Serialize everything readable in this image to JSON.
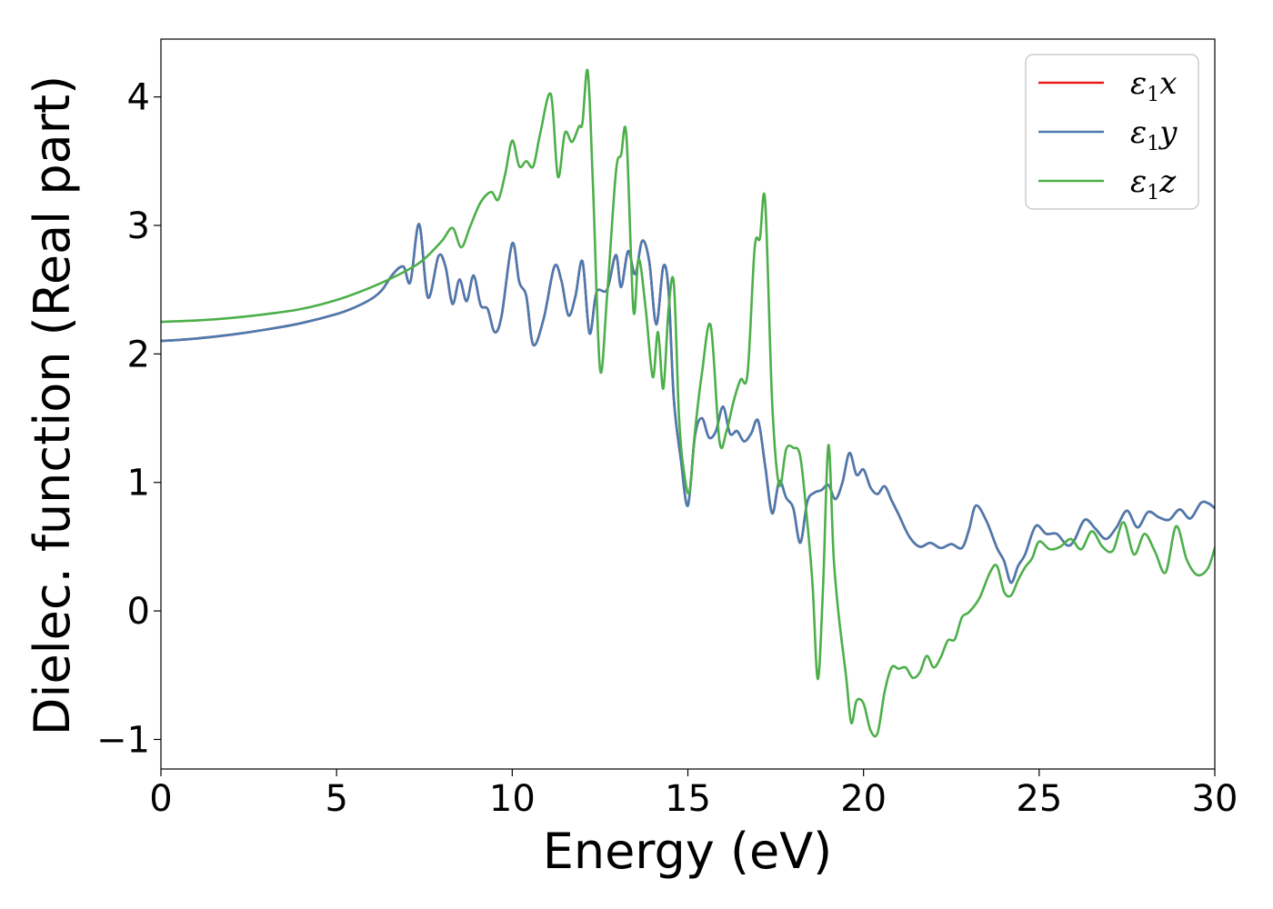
{
  "chart_data": {
    "type": "line",
    "xlabel": "Energy (eV)",
    "ylabel": "Dielec. function (Real part)",
    "xlim": [
      0,
      30
    ],
    "ylim": [
      -1.23,
      4.45
    ],
    "xticks": [
      0,
      5,
      10,
      15,
      20,
      25,
      30
    ],
    "xtick_labels": [
      "0",
      "5",
      "10",
      "15",
      "20",
      "25",
      "30"
    ],
    "yticks": [
      -1,
      0,
      1,
      2,
      3,
      4
    ],
    "ytick_labels": [
      "−1",
      "0",
      "1",
      "2",
      "3",
      "4"
    ],
    "grid": false,
    "legend_position": "top-right",
    "series": [
      {
        "name": "ε1x",
        "legend_symbol": "ε",
        "legend_sub": "1",
        "legend_var": "x",
        "color": "#e41a1c",
        "x": [
          0,
          1,
          2,
          3,
          4,
          5,
          5.5,
          6,
          6.3,
          6.6,
          6.9,
          7.1,
          7.35,
          7.6,
          7.9,
          8.1,
          8.3,
          8.5,
          8.7,
          8.9,
          9.1,
          9.3,
          9.5,
          9.7,
          10.0,
          10.2,
          10.4,
          10.6,
          10.9,
          11.2,
          11.4,
          11.6,
          11.8,
          12.0,
          12.2,
          12.4,
          12.7,
          12.95,
          13.1,
          13.3,
          13.5,
          13.7,
          13.9,
          14.1,
          14.3,
          14.45,
          14.6,
          14.8,
          15.0,
          15.2,
          15.4,
          15.6,
          15.8,
          16.0,
          16.2,
          16.4,
          16.6,
          16.8,
          17.0,
          17.2,
          17.4,
          17.6,
          17.8,
          18.0,
          18.2,
          18.4,
          18.6,
          18.8,
          19.0,
          19.2,
          19.4,
          19.6,
          19.8,
          20.0,
          20.2,
          20.4,
          20.6,
          20.8,
          21.0,
          21.3,
          21.6,
          21.9,
          22.2,
          22.5,
          22.8,
          23.0,
          23.2,
          23.5,
          23.8,
          24.0,
          24.2,
          24.4,
          24.6,
          24.9,
          25.2,
          25.5,
          25.8,
          26.0,
          26.3,
          26.6,
          26.9,
          27.2,
          27.5,
          27.8,
          28.1,
          28.4,
          28.7,
          29.0,
          29.3,
          29.6,
          29.8,
          30.0
        ],
        "values": [
          2.1,
          2.12,
          2.15,
          2.19,
          2.24,
          2.31,
          2.36,
          2.43,
          2.5,
          2.62,
          2.68,
          2.56,
          3.01,
          2.44,
          2.76,
          2.68,
          2.39,
          2.58,
          2.41,
          2.61,
          2.38,
          2.35,
          2.17,
          2.3,
          2.86,
          2.56,
          2.45,
          2.07,
          2.28,
          2.68,
          2.57,
          2.3,
          2.45,
          2.72,
          2.16,
          2.48,
          2.5,
          2.77,
          2.52,
          2.8,
          2.62,
          2.88,
          2.72,
          2.23,
          2.68,
          2.49,
          1.65,
          1.18,
          0.82,
          1.36,
          1.5,
          1.35,
          1.4,
          1.59,
          1.38,
          1.4,
          1.32,
          1.38,
          1.48,
          1.13,
          0.76,
          1.01,
          0.88,
          0.8,
          0.53,
          0.85,
          0.92,
          0.94,
          0.98,
          0.87,
          1.0,
          1.23,
          1.06,
          1.1,
          0.96,
          0.91,
          0.97,
          0.86,
          0.75,
          0.58,
          0.5,
          0.53,
          0.49,
          0.52,
          0.49,
          0.63,
          0.82,
          0.7,
          0.49,
          0.39,
          0.22,
          0.35,
          0.44,
          0.66,
          0.6,
          0.6,
          0.51,
          0.55,
          0.71,
          0.64,
          0.56,
          0.65,
          0.78,
          0.65,
          0.77,
          0.73,
          0.71,
          0.79,
          0.72,
          0.84,
          0.84,
          0.8
        ]
      },
      {
        "name": "ε1y",
        "legend_symbol": "ε",
        "legend_sub": "1",
        "legend_var": "y",
        "color": "#4a7bb0",
        "x": [
          0,
          1,
          2,
          3,
          4,
          5,
          5.5,
          6,
          6.3,
          6.6,
          6.9,
          7.1,
          7.35,
          7.6,
          7.9,
          8.1,
          8.3,
          8.5,
          8.7,
          8.9,
          9.1,
          9.3,
          9.5,
          9.7,
          10.0,
          10.2,
          10.4,
          10.6,
          10.9,
          11.2,
          11.4,
          11.6,
          11.8,
          12.0,
          12.2,
          12.4,
          12.7,
          12.95,
          13.1,
          13.3,
          13.5,
          13.7,
          13.9,
          14.1,
          14.3,
          14.45,
          14.6,
          14.8,
          15.0,
          15.2,
          15.4,
          15.6,
          15.8,
          16.0,
          16.2,
          16.4,
          16.6,
          16.8,
          17.0,
          17.2,
          17.4,
          17.6,
          17.8,
          18.0,
          18.2,
          18.4,
          18.6,
          18.8,
          19.0,
          19.2,
          19.4,
          19.6,
          19.8,
          20.0,
          20.2,
          20.4,
          20.6,
          20.8,
          21.0,
          21.3,
          21.6,
          21.9,
          22.2,
          22.5,
          22.8,
          23.0,
          23.2,
          23.5,
          23.8,
          24.0,
          24.2,
          24.4,
          24.6,
          24.9,
          25.2,
          25.5,
          25.8,
          26.0,
          26.3,
          26.6,
          26.9,
          27.2,
          27.5,
          27.8,
          28.1,
          28.4,
          28.7,
          29.0,
          29.3,
          29.6,
          29.8,
          30.0
        ],
        "values": [
          2.1,
          2.12,
          2.15,
          2.19,
          2.24,
          2.31,
          2.36,
          2.43,
          2.5,
          2.62,
          2.68,
          2.56,
          3.01,
          2.44,
          2.76,
          2.68,
          2.39,
          2.58,
          2.41,
          2.61,
          2.38,
          2.35,
          2.17,
          2.3,
          2.86,
          2.56,
          2.45,
          2.07,
          2.28,
          2.68,
          2.57,
          2.3,
          2.45,
          2.72,
          2.16,
          2.48,
          2.5,
          2.77,
          2.52,
          2.8,
          2.62,
          2.88,
          2.72,
          2.23,
          2.68,
          2.49,
          1.65,
          1.18,
          0.82,
          1.36,
          1.5,
          1.35,
          1.4,
          1.59,
          1.38,
          1.4,
          1.32,
          1.38,
          1.48,
          1.13,
          0.76,
          1.01,
          0.88,
          0.8,
          0.53,
          0.85,
          0.92,
          0.94,
          0.98,
          0.87,
          1.0,
          1.23,
          1.06,
          1.1,
          0.96,
          0.91,
          0.97,
          0.86,
          0.75,
          0.58,
          0.5,
          0.53,
          0.49,
          0.52,
          0.49,
          0.63,
          0.82,
          0.7,
          0.49,
          0.39,
          0.22,
          0.35,
          0.44,
          0.66,
          0.6,
          0.6,
          0.51,
          0.55,
          0.71,
          0.64,
          0.56,
          0.65,
          0.78,
          0.65,
          0.77,
          0.73,
          0.71,
          0.79,
          0.72,
          0.84,
          0.84,
          0.8
        ]
      },
      {
        "name": "ε1z",
        "legend_symbol": "ε",
        "legend_sub": "1",
        "legend_var": "z",
        "color": "#4daf4a",
        "x": [
          0,
          1,
          2,
          3,
          4,
          5,
          6,
          7,
          7.5,
          8.0,
          8.3,
          8.55,
          8.8,
          9.1,
          9.4,
          9.6,
          9.8,
          10.0,
          10.2,
          10.4,
          10.6,
          10.8,
          11.1,
          11.3,
          11.5,
          11.7,
          11.9,
          12.0,
          12.15,
          12.3,
          12.5,
          12.7,
          12.95,
          13.1,
          13.25,
          13.45,
          13.6,
          13.8,
          14.0,
          14.15,
          14.3,
          14.45,
          14.6,
          14.75,
          14.9,
          15.05,
          15.2,
          15.4,
          15.65,
          15.9,
          16.1,
          16.3,
          16.5,
          16.7,
          16.9,
          17.05,
          17.2,
          17.4,
          17.6,
          17.8,
          18.0,
          18.2,
          18.4,
          18.55,
          18.7,
          18.85,
          19.0,
          19.15,
          19.3,
          19.5,
          19.65,
          19.8,
          20.0,
          20.2,
          20.4,
          20.6,
          20.8,
          21.0,
          21.2,
          21.4,
          21.6,
          21.8,
          22.0,
          22.2,
          22.4,
          22.6,
          22.8,
          23.0,
          23.3,
          23.6,
          23.8,
          24.0,
          24.2,
          24.4,
          24.6,
          24.8,
          25.0,
          25.3,
          25.6,
          25.9,
          26.2,
          26.5,
          26.8,
          27.1,
          27.4,
          27.7,
          28.0,
          28.3,
          28.6,
          28.9,
          29.2,
          29.5,
          29.8,
          30.0
        ],
        "values": [
          2.25,
          2.26,
          2.28,
          2.31,
          2.35,
          2.42,
          2.52,
          2.65,
          2.74,
          2.88,
          2.98,
          2.83,
          2.99,
          3.18,
          3.26,
          3.2,
          3.4,
          3.66,
          3.46,
          3.5,
          3.46,
          3.72,
          4.02,
          3.38,
          3.72,
          3.65,
          3.77,
          3.8,
          4.2,
          3.3,
          1.88,
          2.45,
          3.41,
          3.55,
          3.7,
          2.34,
          2.74,
          2.35,
          1.82,
          2.17,
          1.73,
          2.35,
          2.55,
          1.5,
          1.06,
          0.93,
          1.39,
          1.85,
          2.22,
          1.32,
          1.4,
          1.63,
          1.8,
          1.85,
          2.82,
          2.9,
          3.19,
          1.62,
          0.98,
          1.26,
          1.27,
          1.2,
          0.69,
          0.2,
          -0.53,
          0.2,
          1.29,
          0.42,
          -0.05,
          -0.5,
          -0.87,
          -0.7,
          -0.72,
          -0.93,
          -0.95,
          -0.63,
          -0.44,
          -0.45,
          -0.44,
          -0.52,
          -0.48,
          -0.35,
          -0.44,
          -0.36,
          -0.23,
          -0.22,
          -0.05,
          -0.01,
          0.1,
          0.3,
          0.35,
          0.15,
          0.12,
          0.24,
          0.34,
          0.41,
          0.54,
          0.48,
          0.5,
          0.56,
          0.48,
          0.62,
          0.5,
          0.47,
          0.69,
          0.44,
          0.6,
          0.46,
          0.3,
          0.66,
          0.4,
          0.28,
          0.33,
          0.49
        ]
      }
    ]
  }
}
